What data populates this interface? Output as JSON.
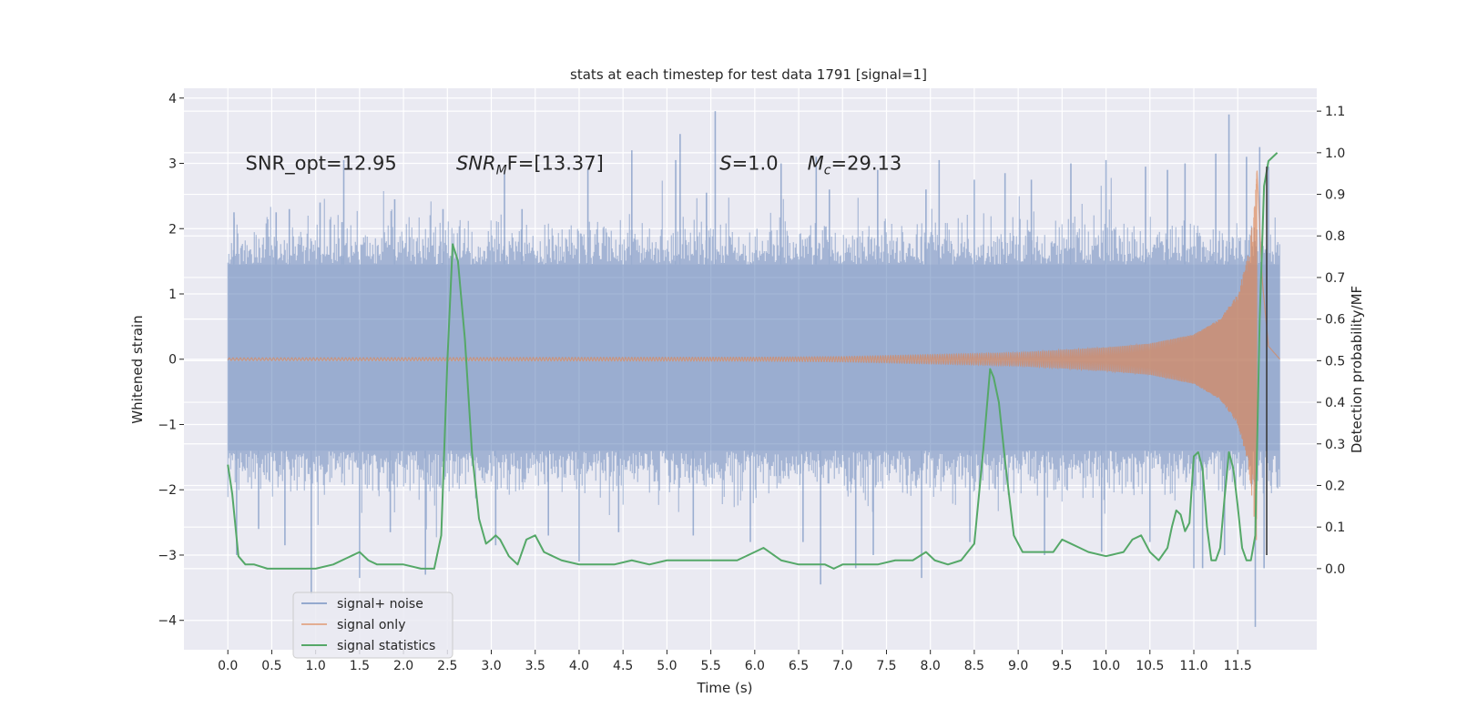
{
  "chart_data": {
    "type": "line",
    "title": "stats at each timestep for test data 1791 [signal=1]",
    "xlabel": "Time (s)",
    "ylabel_left": "Whitened strain",
    "ylabel_right": "Detection probability/MF",
    "xlim": [
      -0.5,
      12.4
    ],
    "ylim_left": [
      -4.45,
      4.15
    ],
    "ylim_right": [
      -0.195,
      1.155
    ],
    "xticks": [
      0.0,
      0.5,
      1.0,
      1.5,
      2.0,
      2.5,
      3.0,
      3.5,
      4.0,
      4.5,
      5.0,
      5.5,
      6.0,
      6.5,
      7.0,
      7.5,
      8.0,
      8.5,
      9.0,
      9.5,
      10.0,
      10.5,
      11.0,
      11.5
    ],
    "xtick_labels": [
      "0.0",
      "0.5",
      "1.0",
      "1.5",
      "2.0",
      "2.5",
      "3.0",
      "3.5",
      "4.0",
      "4.5",
      "5.0",
      "5.5",
      "6.0",
      "6.5",
      "7.0",
      "7.5",
      "8.0",
      "8.5",
      "9.0",
      "9.5",
      "10.0",
      "10.5",
      "11.0",
      "11.5"
    ],
    "yticks_left": [
      -4,
      -3,
      -2,
      -1,
      0,
      1,
      2,
      3,
      4
    ],
    "ytick_labels_left": [
      "−4",
      "−3",
      "−2",
      "−1",
      "0",
      "1",
      "2",
      "3",
      "4"
    ],
    "yticks_right": [
      0.0,
      0.1,
      0.2,
      0.3,
      0.4,
      0.5,
      0.6,
      0.7,
      0.8,
      0.9,
      1.0,
      1.1
    ],
    "ytick_labels_right": [
      "0.0",
      "0.1",
      "0.2",
      "0.3",
      "0.4",
      "0.5",
      "0.6",
      "0.7",
      "0.8",
      "0.9",
      "1.0",
      "1.1"
    ],
    "grid": true,
    "legend_position": "lower-left",
    "colors": {
      "background": "#eaeaf2",
      "grid": "#ffffff",
      "signal_noise": "#4c72b0",
      "signal_only": "#dd8452",
      "signal_statistics": "#55a868",
      "marker_line": "#3a3a3a"
    },
    "annotations": [
      {
        "prefix": "SNR_opt=12.95",
        "sym": "",
        "sub": "",
        "suffix": "",
        "x": 0.2,
        "y": 3.0
      },
      {
        "prefix": "",
        "sym": "SNR",
        "sub": "M",
        "suffix": "F=[13.37]",
        "x": 2.6,
        "y": 3.0
      },
      {
        "prefix": "",
        "sym": "S",
        "sub": "",
        "suffix": "=1.0",
        "x": 5.6,
        "y": 3.0
      },
      {
        "prefix": "",
        "sym": "M",
        "sub": "c",
        "suffix": "=29.13",
        "x": 6.6,
        "y": 3.0
      }
    ],
    "vertical_line": {
      "x": 11.83,
      "y_range": [
        -3.0,
        2.95
      ]
    },
    "series": [
      {
        "name": "signal+ noise",
        "axis": "left",
        "kind": "noise_band",
        "x_range": [
          0.0,
          11.98
        ],
        "band_envelope": {
          "x": [
            0.0,
            11.98
          ],
          "lower": -1.4,
          "upper": 1.45
        },
        "peaks": [
          {
            "x": 0.07,
            "y": 2.25
          },
          {
            "x": 0.55,
            "y": 2.25
          },
          {
            "x": 0.7,
            "y": 2.3
          },
          {
            "x": 1.05,
            "y": 2.4
          },
          {
            "x": 1.3,
            "y": 2.1
          },
          {
            "x": 1.32,
            "y": 3.05
          },
          {
            "x": 1.9,
            "y": 2.45
          },
          {
            "x": 2.45,
            "y": 2.3
          },
          {
            "x": 3.15,
            "y": 2.9
          },
          {
            "x": 3.35,
            "y": 2.3
          },
          {
            "x": 4.1,
            "y": 2.9
          },
          {
            "x": 4.6,
            "y": 3.2
          },
          {
            "x": 5.1,
            "y": 3.05
          },
          {
            "x": 5.15,
            "y": 3.45
          },
          {
            "x": 5.45,
            "y": 2.55
          },
          {
            "x": 5.55,
            "y": 3.8
          },
          {
            "x": 6.3,
            "y": 3.0
          },
          {
            "x": 6.7,
            "y": 3.1
          },
          {
            "x": 6.85,
            "y": 2.6
          },
          {
            "x": 7.4,
            "y": 2.9
          },
          {
            "x": 7.95,
            "y": 2.6
          },
          {
            "x": 8.1,
            "y": 3.05
          },
          {
            "x": 8.5,
            "y": 2.75
          },
          {
            "x": 8.85,
            "y": 2.85
          },
          {
            "x": 9.15,
            "y": 2.75
          },
          {
            "x": 9.6,
            "y": 3.0
          },
          {
            "x": 10.0,
            "y": 3.05
          },
          {
            "x": 10.45,
            "y": 2.95
          },
          {
            "x": 10.7,
            "y": 2.9
          },
          {
            "x": 10.9,
            "y": 3.0
          },
          {
            "x": 11.25,
            "y": 3.15
          },
          {
            "x": 11.4,
            "y": 3.75
          },
          {
            "x": 11.6,
            "y": 3.1
          },
          {
            "x": 11.75,
            "y": 3.25
          },
          {
            "x": 11.85,
            "y": 2.95
          }
        ],
        "troughs": [
          {
            "x": 0.1,
            "y": -3.0
          },
          {
            "x": 0.35,
            "y": -2.6
          },
          {
            "x": 0.65,
            "y": -2.85
          },
          {
            "x": 0.95,
            "y": -3.6
          },
          {
            "x": 1.5,
            "y": -3.35
          },
          {
            "x": 1.85,
            "y": -2.65
          },
          {
            "x": 2.25,
            "y": -3.3
          },
          {
            "x": 3.05,
            "y": -2.85
          },
          {
            "x": 3.65,
            "y": -2.7
          },
          {
            "x": 4.0,
            "y": -3.1
          },
          {
            "x": 4.45,
            "y": -2.65
          },
          {
            "x": 5.3,
            "y": -2.7
          },
          {
            "x": 5.95,
            "y": -2.8
          },
          {
            "x": 6.55,
            "y": -2.8
          },
          {
            "x": 6.75,
            "y": -3.45
          },
          {
            "x": 7.15,
            "y": -3.2
          },
          {
            "x": 7.35,
            "y": -3.0
          },
          {
            "x": 7.9,
            "y": -3.35
          },
          {
            "x": 8.45,
            "y": -2.8
          },
          {
            "x": 9.3,
            "y": -3.0
          },
          {
            "x": 9.95,
            "y": -2.95
          },
          {
            "x": 10.5,
            "y": -2.8
          },
          {
            "x": 11.0,
            "y": -3.2
          },
          {
            "x": 11.1,
            "y": -3.2
          },
          {
            "x": 11.35,
            "y": -3.0
          },
          {
            "x": 11.7,
            "y": -4.1
          },
          {
            "x": 11.8,
            "y": -3.2
          }
        ]
      },
      {
        "name": "signal only",
        "axis": "left",
        "kind": "chirp",
        "x_range": [
          0.0,
          11.98
        ],
        "merger_time": 11.72,
        "envelope": [
          {
            "x": 0.0,
            "a": 0.02
          },
          {
            "x": 6.0,
            "a": 0.03
          },
          {
            "x": 7.0,
            "a": 0.04
          },
          {
            "x": 8.0,
            "a": 0.07
          },
          {
            "x": 9.0,
            "a": 0.1
          },
          {
            "x": 10.0,
            "a": 0.18
          },
          {
            "x": 10.5,
            "a": 0.24
          },
          {
            "x": 11.0,
            "a": 0.38
          },
          {
            "x": 11.3,
            "a": 0.62
          },
          {
            "x": 11.5,
            "a": 1.0
          },
          {
            "x": 11.62,
            "a": 1.6
          },
          {
            "x": 11.7,
            "a": 2.6
          },
          {
            "x": 11.72,
            "a": 2.9
          },
          {
            "x": 11.78,
            "a": 1.2
          },
          {
            "x": 11.85,
            "a": 0.2
          },
          {
            "x": 11.98,
            "a": 0.0
          }
        ]
      },
      {
        "name": "signal statistics",
        "axis": "right",
        "kind": "line",
        "x": [
          0.0,
          0.05,
          0.12,
          0.2,
          0.3,
          0.45,
          0.6,
          0.8,
          1.0,
          1.2,
          1.4,
          1.5,
          1.6,
          1.7,
          1.8,
          2.0,
          2.2,
          2.35,
          2.43,
          2.5,
          2.56,
          2.62,
          2.7,
          2.78,
          2.86,
          2.94,
          3.0,
          3.05,
          3.1,
          3.2,
          3.3,
          3.4,
          3.5,
          3.6,
          3.7,
          3.8,
          4.0,
          4.2,
          4.4,
          4.6,
          4.8,
          5.0,
          5.2,
          5.4,
          5.6,
          5.8,
          6.0,
          6.1,
          6.3,
          6.5,
          6.7,
          6.8,
          6.9,
          7.0,
          7.2,
          7.4,
          7.6,
          7.8,
          7.95,
          8.05,
          8.2,
          8.35,
          8.5,
          8.6,
          8.68,
          8.72,
          8.78,
          8.85,
          8.95,
          9.05,
          9.2,
          9.3,
          9.4,
          9.5,
          9.6,
          9.7,
          9.8,
          10.0,
          10.2,
          10.3,
          10.4,
          10.5,
          10.6,
          10.7,
          10.75,
          10.8,
          10.85,
          10.9,
          10.95,
          11.0,
          11.05,
          11.1,
          11.15,
          11.2,
          11.25,
          11.3,
          11.35,
          11.4,
          11.45,
          11.5,
          11.55,
          11.6,
          11.65,
          11.7,
          11.75,
          11.8,
          11.85,
          11.9,
          11.95
        ],
        "y": [
          0.25,
          0.18,
          0.03,
          0.01,
          0.01,
          0.0,
          0.0,
          0.0,
          0.0,
          0.01,
          0.03,
          0.04,
          0.02,
          0.01,
          0.01,
          0.01,
          0.0,
          0.0,
          0.08,
          0.5,
          0.78,
          0.74,
          0.55,
          0.28,
          0.12,
          0.06,
          0.07,
          0.08,
          0.07,
          0.03,
          0.01,
          0.07,
          0.08,
          0.04,
          0.03,
          0.02,
          0.01,
          0.01,
          0.01,
          0.02,
          0.01,
          0.02,
          0.02,
          0.02,
          0.02,
          0.02,
          0.04,
          0.05,
          0.02,
          0.01,
          0.01,
          0.01,
          0.0,
          0.01,
          0.01,
          0.01,
          0.02,
          0.02,
          0.04,
          0.02,
          0.01,
          0.02,
          0.06,
          0.28,
          0.48,
          0.46,
          0.4,
          0.26,
          0.08,
          0.04,
          0.04,
          0.04,
          0.04,
          0.07,
          0.06,
          0.05,
          0.04,
          0.03,
          0.04,
          0.07,
          0.08,
          0.04,
          0.02,
          0.05,
          0.1,
          0.14,
          0.13,
          0.09,
          0.11,
          0.27,
          0.28,
          0.24,
          0.1,
          0.02,
          0.02,
          0.05,
          0.17,
          0.28,
          0.24,
          0.15,
          0.05,
          0.02,
          0.02,
          0.08,
          0.6,
          0.92,
          0.98,
          0.99,
          1.0
        ]
      }
    ]
  }
}
